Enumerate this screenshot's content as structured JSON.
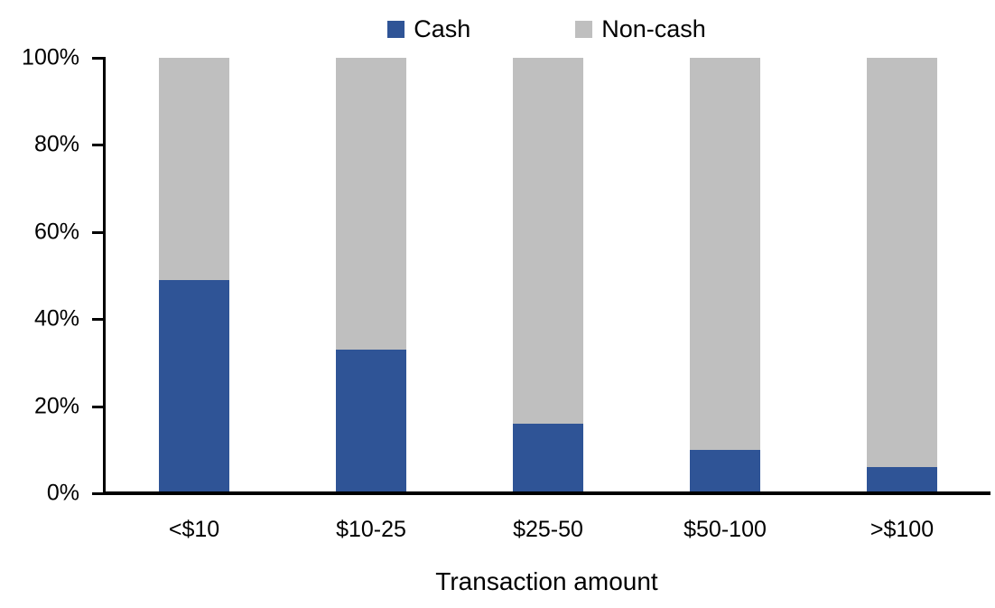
{
  "chart_data": {
    "type": "bar",
    "stacked": true,
    "percent_stacked": true,
    "title": "",
    "xlabel": "Transaction amount",
    "ylabel": "",
    "categories": [
      "<$10",
      "$10-25",
      "$25-50",
      "$50-100",
      ">$100"
    ],
    "series": [
      {
        "name": "Cash",
        "color": "#2F5496",
        "values": [
          49,
          33,
          16,
          10,
          6
        ]
      },
      {
        "name": "Non-cash",
        "color": "#BFBFBF",
        "values": [
          51,
          67,
          84,
          90,
          94
        ]
      }
    ],
    "ylim": [
      0,
      100
    ],
    "yticks": [
      "100%",
      "80%",
      "60%",
      "40%",
      "20%",
      "0%"
    ],
    "legend_position": "top",
    "grid": false,
    "axis_color": "#000000",
    "background_color": "#FFFFFF"
  }
}
